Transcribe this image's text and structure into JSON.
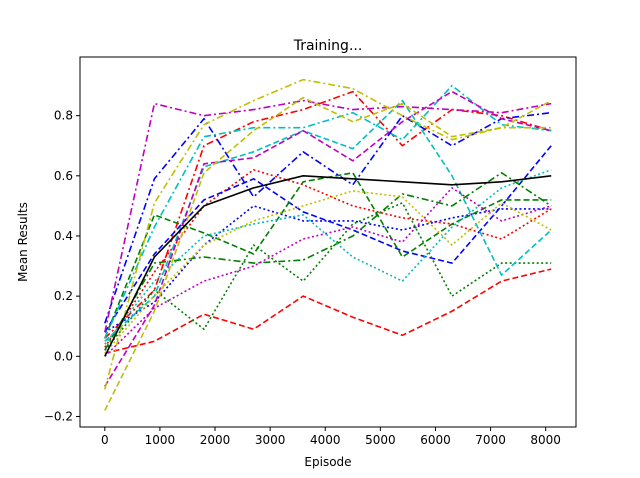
{
  "chart_data": {
    "type": "line",
    "title": "Training...",
    "xlabel": "Episode",
    "ylabel": "Mean Results",
    "xlim": [
      -450,
      8550
    ],
    "ylim": [
      -0.235,
      0.995
    ],
    "x_ticks": [
      0,
      1000,
      2000,
      3000,
      4000,
      5000,
      6000,
      7000,
      8000
    ],
    "x_tick_labels": [
      "0",
      "1000",
      "2000",
      "3000",
      "4000",
      "5000",
      "6000",
      "7000",
      "8000"
    ],
    "y_ticks": [
      -0.2,
      0.0,
      0.2,
      0.4,
      0.6,
      0.8
    ],
    "y_tick_labels": [
      "−0.2",
      "0.0",
      "0.2",
      "0.4",
      "0.6",
      "0.8"
    ],
    "grid": false,
    "legend": "none",
    "x": [
      0,
      900,
      1800,
      2700,
      3600,
      4500,
      5400,
      6300,
      7200,
      8100
    ],
    "series": [
      {
        "color": "#ff0000",
        "dash": "dashed",
        "values": [
          0.01,
          0.05,
          0.14,
          0.09,
          0.2,
          0.13,
          0.07,
          0.15,
          0.25,
          0.29
        ]
      },
      {
        "color": "#ff0000",
        "dash": "dashdot",
        "values": [
          0.06,
          0.22,
          0.7,
          0.78,
          0.82,
          0.88,
          0.7,
          0.82,
          0.8,
          0.75
        ]
      },
      {
        "color": "#ff0000",
        "dash": "dotted",
        "values": [
          0.03,
          0.28,
          0.5,
          0.62,
          0.57,
          0.5,
          0.46,
          0.44,
          0.39,
          0.49
        ]
      },
      {
        "color": "#0000ff",
        "dash": "dashed",
        "values": [
          0.08,
          0.34,
          0.52,
          0.59,
          0.48,
          0.42,
          0.35,
          0.31,
          0.5,
          0.7
        ]
      },
      {
        "color": "#0000ff",
        "dash": "dashdot",
        "values": [
          0.11,
          0.59,
          0.79,
          0.53,
          0.68,
          0.57,
          0.8,
          0.7,
          0.79,
          0.81
        ]
      },
      {
        "color": "#0000ff",
        "dash": "dotted",
        "values": [
          0.08,
          0.18,
          0.37,
          0.5,
          0.45,
          0.45,
          0.42,
          0.46,
          0.49,
          0.49
        ]
      },
      {
        "color": "#008000",
        "dash": "dashed",
        "values": [
          0.06,
          0.47,
          0.41,
          0.34,
          0.58,
          0.61,
          0.33,
          0.44,
          0.52,
          0.52
        ]
      },
      {
        "color": "#008000",
        "dash": "dashdot",
        "values": [
          0.02,
          0.31,
          0.33,
          0.31,
          0.32,
          0.4,
          0.54,
          0.5,
          0.61,
          0.5
        ]
      },
      {
        "color": "#008000",
        "dash": "dotted",
        "values": [
          0.02,
          0.22,
          0.09,
          0.37,
          0.25,
          0.44,
          0.51,
          0.2,
          0.31,
          0.31
        ]
      },
      {
        "color": "#00bfbf",
        "dash": "dashed",
        "values": [
          0.05,
          0.2,
          0.63,
          0.68,
          0.75,
          0.69,
          0.85,
          0.6,
          0.27,
          0.42
        ]
      },
      {
        "color": "#00bfbf",
        "dash": "dashdot",
        "values": [
          0.06,
          0.43,
          0.73,
          0.76,
          0.76,
          0.81,
          0.72,
          0.9,
          0.77,
          0.75
        ]
      },
      {
        "color": "#00bfbf",
        "dash": "dotted",
        "values": [
          0.04,
          0.25,
          0.4,
          0.44,
          0.47,
          0.33,
          0.25,
          0.43,
          0.56,
          0.62
        ]
      },
      {
        "color": "#bf00bf",
        "dash": "dashed",
        "values": [
          -0.1,
          0.17,
          0.64,
          0.66,
          0.75,
          0.65,
          0.78,
          0.88,
          0.79,
          0.75
        ]
      },
      {
        "color": "#bf00bf",
        "dash": "dashdot",
        "values": [
          0.08,
          0.84,
          0.8,
          0.82,
          0.85,
          0.82,
          0.83,
          0.82,
          0.81,
          0.84
        ]
      },
      {
        "color": "#bf00bf",
        "dash": "dotted",
        "values": [
          0.0,
          0.16,
          0.25,
          0.3,
          0.39,
          0.43,
          0.38,
          0.56,
          0.45,
          0.5
        ]
      },
      {
        "color": "#bfbf00",
        "dash": "dashed",
        "values": [
          -0.18,
          0.15,
          0.61,
          0.75,
          0.86,
          0.78,
          0.84,
          0.73,
          0.76,
          0.85
        ]
      },
      {
        "color": "#bfbf00",
        "dash": "dashdot",
        "values": [
          -0.11,
          0.51,
          0.77,
          0.85,
          0.92,
          0.89,
          0.8,
          0.72,
          0.76,
          0.76
        ]
      },
      {
        "color": "#bfbf00",
        "dash": "dotted",
        "values": [
          0.01,
          0.2,
          0.37,
          0.45,
          0.5,
          0.55,
          0.53,
          0.37,
          0.51,
          0.42
        ]
      },
      {
        "color": "#000000",
        "dash": "solid",
        "values": [
          0.0,
          0.33,
          0.5,
          0.56,
          0.6,
          0.59,
          0.58,
          0.57,
          0.58,
          0.6
        ]
      }
    ]
  }
}
